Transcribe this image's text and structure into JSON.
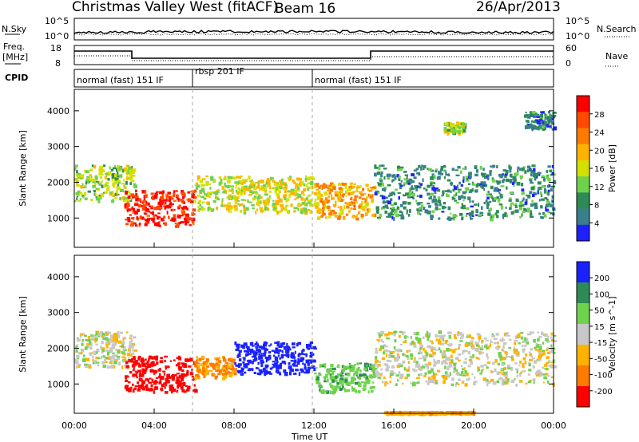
{
  "header": {
    "site": "Christmas Valley West (fitACF)",
    "beam": "Beam 16",
    "date": "26/Apr/2013"
  },
  "top_panels": {
    "nsky_label": "N.Sky",
    "nsky_ticks": [
      "10^5",
      "10^0"
    ],
    "nsky_right_ticks": [
      "10^5",
      "10^0"
    ],
    "nsearch_label": "N.Search",
    "freq_label": "Freq.",
    "freq_unit": "[MHz]",
    "freq_ticks": [
      "18",
      "8"
    ],
    "nave_ticks": [
      "60",
      "0"
    ],
    "nave_label": "Nave",
    "cpid_label": "CPID",
    "cpid_segments": [
      {
        "label": "normal (fast) 151 IF"
      },
      {
        "label": "rbsp 201 IF"
      },
      {
        "label": "normal (fast) 151 IF"
      }
    ]
  },
  "x_axis": {
    "label": "Time UT",
    "ticks": [
      "00:00",
      "04:00",
      "08:00",
      "12:00",
      "16:00",
      "20:00",
      "00:00"
    ]
  },
  "chart_data": [
    {
      "type": "heatmap",
      "panel": "power",
      "ylabel": "Slant Range [km]",
      "yticks": [
        "4000",
        "3000",
        "2000",
        "1000"
      ],
      "ylim": [
        180,
        4600
      ],
      "xlim_hours": [
        0,
        24
      ],
      "colorbar_label": "Power [dB]",
      "colorbar_ticks": [
        "28",
        "24",
        "20",
        "16",
        "12",
        "8",
        "4"
      ],
      "colorbar_colors": [
        "#ff0000",
        "#ff4a00",
        "#ff7a00",
        "#ffb300",
        "#d4e000",
        "#6fd24c",
        "#2e8b57",
        "#3a7f8c",
        "#2020ff"
      ],
      "colors": {
        "max": "#ff0000",
        "high": "#ff7a00",
        "mid": "#4cbf3b",
        "low": "#2e7a6e",
        "min": "#1a23ff"
      },
      "regions": [
        {
          "t": [
            0.0,
            3.0
          ],
          "range": [
            1500,
            2500
          ],
          "value": 12
        },
        {
          "t": [
            2.5,
            6.0
          ],
          "range": [
            800,
            1800
          ],
          "value": 27
        },
        {
          "t": [
            6.0,
            12.0
          ],
          "range": [
            1200,
            2200
          ],
          "value": 14
        },
        {
          "t": [
            12.0,
            15.0
          ],
          "range": [
            1000,
            2000
          ],
          "value": 18
        },
        {
          "t": [
            15.0,
            24.0
          ],
          "range": [
            1000,
            2500
          ],
          "value": 6
        },
        {
          "t": [
            18.5,
            19.5
          ],
          "range": [
            3400,
            3700
          ],
          "value": 12
        },
        {
          "t": [
            22.5,
            24.0
          ],
          "range": [
            3500,
            4000
          ],
          "value": 5
        }
      ]
    },
    {
      "type": "heatmap",
      "panel": "velocity",
      "ylabel": "Slant Range [km]",
      "yticks": [
        "4000",
        "3000",
        "2000",
        "1000"
      ],
      "ylim": [
        180,
        4600
      ],
      "xlim_hours": [
        0,
        24
      ],
      "colorbar_label": "Velocity [m s^-1]",
      "colorbar_ticks": [
        "200",
        "100",
        "50",
        "15",
        "-15",
        "-50",
        "-100",
        "-200"
      ],
      "colorbar_colors": [
        "#1a23ff",
        "#2e8b57",
        "#6fd24c",
        "#c8c8c8",
        "#ffb300",
        "#ff7a00",
        "#ff0000"
      ],
      "colors": {
        "toward": "#1a23ff",
        "mid_toward": "#2e8b57",
        "low_toward": "#6fd24c",
        "ground": "#c8c8c8",
        "low_away": "#ffb300",
        "mid_away": "#ff7a00",
        "away": "#ff0000"
      },
      "regions": [
        {
          "t": [
            0.0,
            3.0
          ],
          "range": [
            1500,
            2500
          ],
          "value": 0
        },
        {
          "t": [
            2.5,
            6.0
          ],
          "range": [
            800,
            1800
          ],
          "value": -180
        },
        {
          "t": [
            6.0,
            8.0
          ],
          "range": [
            1200,
            1800
          ],
          "value": -80
        },
        {
          "t": [
            8.0,
            12.0
          ],
          "range": [
            1300,
            2200
          ],
          "value": 220
        },
        {
          "t": [
            12.0,
            15.0
          ],
          "range": [
            800,
            1600
          ],
          "value": 60
        },
        {
          "t": [
            15.0,
            24.0
          ],
          "range": [
            1000,
            2500
          ],
          "value": 0
        },
        {
          "t": [
            15.5,
            20.0
          ],
          "range": [
            200,
            250
          ],
          "value": -60
        }
      ]
    }
  ]
}
